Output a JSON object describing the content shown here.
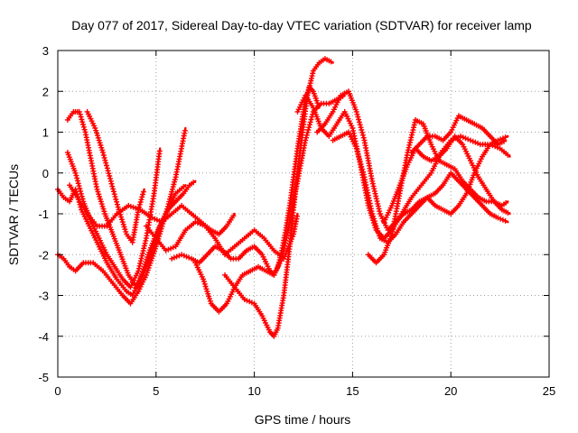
{
  "chart_data": {
    "type": "scatter",
    "title": "Day 077 of 2017, Sidereal Day-to-day VTEC variation (SDTVAR) for receiver lamp",
    "xlabel": "GPS time / hours",
    "ylabel": "SDTVAR / TECUs",
    "xlim": [
      0,
      25
    ],
    "ylim": [
      -5,
      3
    ],
    "xticks": [
      0,
      5,
      10,
      15,
      20,
      25
    ],
    "yticks": [
      -5,
      -4,
      -3,
      -2,
      -1,
      0,
      1,
      2,
      3
    ],
    "grid": true,
    "marker": "plus",
    "color": "#ff0000",
    "series": [
      {
        "x": [
          0.0,
          0.3,
          0.6,
          0.9,
          1.3,
          1.8,
          2.3,
          2.8,
          3.3,
          3.7,
          4.1,
          4.5,
          5.0,
          5.5,
          6.0,
          6.5
        ],
        "y": [
          -2.0,
          -2.1,
          -2.3,
          -2.4,
          -2.2,
          -2.2,
          -2.4,
          -2.7,
          -3.0,
          -3.2,
          -2.9,
          -2.5,
          -1.8,
          -1.0,
          -0.1,
          1.1
        ]
      },
      {
        "x": [
          0.0,
          0.3,
          0.6,
          0.9,
          1.2,
          1.6,
          2.0,
          2.5,
          3.0,
          3.5,
          3.8,
          4.2,
          4.6,
          5.0,
          5.5,
          6.0,
          6.5
        ],
        "y": [
          -0.4,
          -0.6,
          -0.7,
          -0.4,
          -0.9,
          -1.3,
          -1.7,
          -2.2,
          -2.6,
          -2.9,
          -3.0,
          -2.6,
          -2.0,
          -1.5,
          -1.0,
          -0.5,
          -0.3
        ]
      },
      {
        "x": [
          0.5,
          0.8,
          1.1,
          1.4,
          1.7,
          2.0,
          2.4,
          2.8,
          3.2,
          3.6,
          4.0,
          4.4,
          4.8,
          5.2,
          5.6,
          6.0,
          6.4,
          6.7,
          7.0
        ],
        "y": [
          1.3,
          1.5,
          1.5,
          1.0,
          0.3,
          -0.4,
          -1.0,
          -1.5,
          -2.0,
          -2.5,
          -2.8,
          -2.4,
          -1.9,
          -1.3,
          -0.9,
          -0.7,
          -0.5,
          -0.3,
          -0.2
        ]
      },
      {
        "x": [
          0.5,
          0.9,
          1.3,
          1.7,
          2.1,
          2.5,
          2.9,
          3.3,
          3.7,
          4.1,
          4.5,
          4.9,
          5.2
        ],
        "y": [
          0.5,
          0.0,
          -0.7,
          -1.2,
          -1.6,
          -2.0,
          -2.3,
          -2.6,
          -2.8,
          -2.4,
          -1.6,
          -0.5,
          0.6
        ]
      },
      {
        "x": [
          1.5,
          1.9,
          2.3,
          2.7,
          3.1,
          3.5,
          3.8,
          4.1,
          4.4
        ],
        "y": [
          1.5,
          1.1,
          0.5,
          -0.2,
          -0.9,
          -1.5,
          -1.7,
          -0.9,
          -0.4
        ]
      },
      {
        "x": [
          0.6,
          1.0,
          1.5,
          2.0,
          2.5,
          3.0,
          3.6,
          4.2,
          4.8,
          5.3,
          5.8,
          6.3,
          6.8,
          7.3,
          7.8,
          8.2,
          8.6,
          9.0
        ],
        "y": [
          -0.3,
          -0.6,
          -1.0,
          -1.3,
          -1.3,
          -1.0,
          -0.8,
          -0.9,
          -1.1,
          -1.2,
          -1.0,
          -0.8,
          -1.0,
          -1.2,
          -1.4,
          -1.5,
          -1.3,
          -1.0
        ]
      },
      {
        "x": [
          4.5,
          5.0,
          5.5,
          6.0,
          6.5,
          7.0,
          7.5,
          8.0,
          8.5,
          9.0,
          9.5,
          10.0,
          10.5,
          11.0,
          11.5,
          12.0,
          12.2
        ],
        "y": [
          -1.3,
          -1.6,
          -1.9,
          -1.8,
          -1.4,
          -1.2,
          -1.3,
          -1.6,
          -2.0,
          -1.8,
          -1.6,
          -1.4,
          -1.6,
          -1.9,
          -2.1,
          -1.5,
          -1.0
        ]
      },
      {
        "x": [
          5.8,
          6.3,
          6.8,
          7.2,
          7.6,
          8.0,
          8.4,
          8.8,
          9.2,
          9.6,
          10.0,
          10.4,
          10.8,
          11.0,
          11.2,
          11.4,
          11.6,
          11.8,
          12.0,
          12.2,
          12.4,
          12.6,
          12.8,
          13.0,
          13.3
        ],
        "y": [
          -2.1,
          -2.0,
          -2.1,
          -2.2,
          -2.0,
          -1.8,
          -1.9,
          -2.1,
          -2.1,
          -1.9,
          -1.8,
          -2.0,
          -2.4,
          -2.5,
          -2.3,
          -1.9,
          -1.4,
          -0.8,
          -0.1,
          0.6,
          1.2,
          1.8,
          2.1,
          2.0,
          1.6
        ]
      },
      {
        "x": [
          7.0,
          7.4,
          7.8,
          8.2,
          8.6,
          9.0,
          9.4,
          9.8,
          10.2,
          10.6,
          11.0,
          11.4,
          11.8,
          12.2,
          12.6,
          13.0,
          13.4,
          13.8,
          14.2,
          14.6
        ],
        "y": [
          -2.2,
          -2.6,
          -3.2,
          -3.4,
          -3.2,
          -2.8,
          -2.5,
          -2.4,
          -2.3,
          -2.4,
          -2.5,
          -2.1,
          -1.2,
          -0.2,
          0.8,
          1.5,
          1.7,
          1.7,
          1.8,
          1.9
        ]
      },
      {
        "x": [
          8.5,
          9.0,
          9.5,
          10.0,
          10.4,
          10.8,
          11.0,
          11.2,
          11.5,
          11.8,
          12.1,
          12.4,
          12.7,
          13.0,
          13.3,
          13.6,
          14.0
        ],
        "y": [
          -2.5,
          -2.8,
          -3.1,
          -3.2,
          -3.5,
          -3.9,
          -4.0,
          -3.8,
          -3.0,
          -1.8,
          -0.4,
          0.8,
          1.9,
          2.5,
          2.7,
          2.8,
          2.7
        ]
      },
      {
        "x": [
          12.2,
          12.6,
          13.0,
          13.4,
          13.8,
          14.2,
          14.6,
          15.0,
          15.4,
          15.8,
          16.2,
          16.6,
          17.0,
          17.5,
          18.0,
          18.5,
          19.0,
          19.5,
          20.0,
          20.5,
          21.0,
          21.5,
          22.0,
          22.5,
          23.0
        ],
        "y": [
          1.5,
          1.9,
          1.6,
          1.1,
          0.9,
          1.2,
          1.5,
          1.1,
          0.2,
          -0.8,
          -1.4,
          -1.6,
          -1.4,
          -1.0,
          -0.6,
          -0.3,
          0.0,
          0.5,
          0.8,
          0.9,
          0.8,
          0.7,
          0.7,
          0.6,
          0.4
        ]
      },
      {
        "x": [
          13.2,
          13.6,
          14.0,
          14.4,
          14.8,
          15.2,
          15.6,
          16.0,
          16.4,
          16.8,
          17.2,
          17.6,
          18.0,
          18.4,
          18.8,
          19.2,
          19.6,
          20.0,
          20.4,
          20.8,
          21.2,
          21.6,
          22.0,
          22.4,
          22.9
        ],
        "y": [
          1.0,
          1.2,
          1.5,
          1.9,
          2.0,
          1.5,
          0.8,
          -0.2,
          -1.0,
          -1.4,
          -1.2,
          -1.0,
          -0.9,
          -0.7,
          -0.6,
          -0.8,
          -0.9,
          -1.0,
          -0.8,
          -0.5,
          0.0,
          0.4,
          0.7,
          0.8,
          0.9
        ]
      },
      {
        "x": [
          14.0,
          14.4,
          14.8,
          15.2,
          15.6,
          16.0,
          16.4,
          16.8,
          17.2,
          17.6,
          18.0,
          18.4,
          18.8,
          19.2,
          19.6,
          20.0,
          20.4,
          20.8,
          21.2,
          21.6,
          22.0,
          22.4,
          22.9
        ],
        "y": [
          0.8,
          0.9,
          1.0,
          0.6,
          -0.1,
          -1.0,
          -1.6,
          -1.7,
          -1.5,
          -1.2,
          -1.0,
          -0.8,
          -0.6,
          -0.5,
          -0.3,
          0.0,
          -0.2,
          -0.4,
          -0.6,
          -0.8,
          -1.0,
          -1.1,
          -1.2
        ]
      },
      {
        "x": [
          15.8,
          16.2,
          16.6,
          17.0,
          17.4,
          17.8,
          18.2,
          18.6,
          19.0,
          19.4,
          19.8,
          20.2,
          20.6,
          21.0,
          21.4,
          21.8,
          22.2,
          22.6,
          22.9
        ],
        "y": [
          -2.0,
          -2.2,
          -2.0,
          -1.5,
          -0.5,
          0.5,
          1.3,
          1.2,
          0.7,
          0.3,
          0.2,
          0.1,
          -0.2,
          -0.4,
          -0.6,
          -0.7,
          -0.7,
          -0.8,
          -0.7
        ]
      },
      {
        "x": [
          18.0,
          18.4,
          18.8,
          19.2,
          19.6,
          20.0,
          20.4,
          20.8,
          21.2,
          21.6,
          22.0,
          22.4,
          22.8
        ],
        "y": [
          0.5,
          0.7,
          0.9,
          0.9,
          0.8,
          1.0,
          1.4,
          1.3,
          1.2,
          1.1,
          0.9,
          0.7,
          0.8
        ]
      },
      {
        "x": [
          16.6,
          17.0,
          17.4,
          17.8,
          18.2,
          18.6,
          19.0,
          19.4,
          19.8,
          20.2,
          20.6,
          21.0,
          21.4,
          21.8,
          22.2,
          22.6,
          23.0
        ],
        "y": [
          -1.2,
          -0.8,
          -0.3,
          0.2,
          0.6,
          0.4,
          0.3,
          0.4,
          0.6,
          0.9,
          0.7,
          0.3,
          -0.1,
          -0.4,
          -0.7,
          -0.9,
          -1.0
        ]
      }
    ]
  }
}
